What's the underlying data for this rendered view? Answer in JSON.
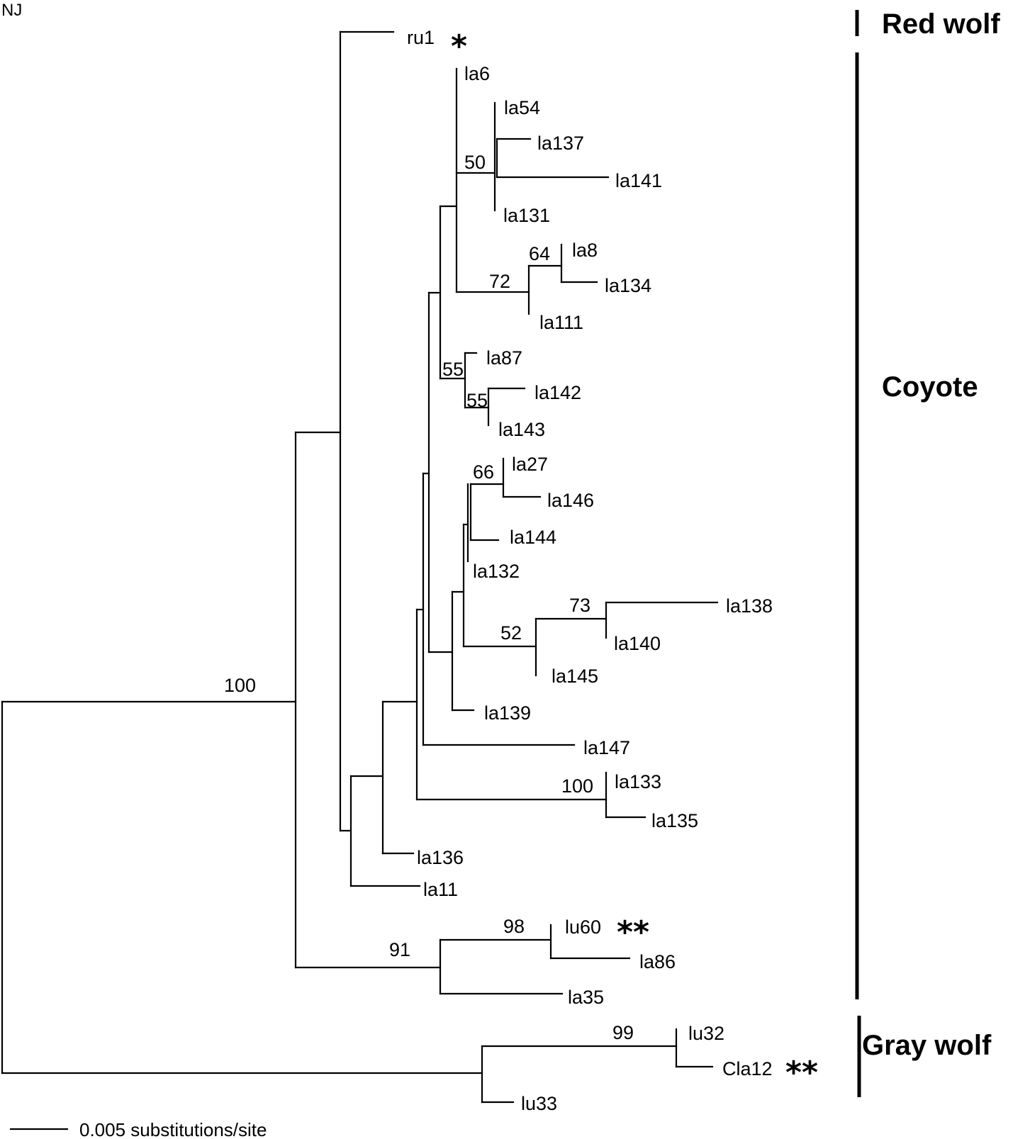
{
  "method_label": "NJ",
  "leaves": {
    "ru1": "ru1",
    "la6": "la6",
    "la54": "la54",
    "la137": "la137",
    "la141": "la141",
    "la131": "la131",
    "la8": "la8",
    "la134": "la134",
    "la111": "la111",
    "la87": "la87",
    "la142": "la142",
    "la143": "la143",
    "la27": "la27",
    "la146": "la146",
    "la144": "la144",
    "la132": "la132",
    "la138": "la138",
    "la140": "la140",
    "la145": "la145",
    "la139": "la139",
    "la147": "la147",
    "la133": "la133",
    "la135": "la135",
    "la136": "la136",
    "la11": "la11",
    "lu60": "lu60",
    "la86": "la86",
    "la35": "la35",
    "lu32": "lu32",
    "cla12": "Cla12",
    "lu33": "lu33"
  },
  "bootstrap": {
    "root_coyote": "100",
    "la_group_50": "50",
    "la8_la134": "64",
    "la8_group": "72",
    "la87_group": "55",
    "la142_la143": "55",
    "la27_la146": "66",
    "la138_la140": "73",
    "la138_group": "52",
    "la133_la135": "100",
    "lu60_la86": "98",
    "lu60_group": "91",
    "lu32_cla12": "99"
  },
  "markers": {
    "ru1_marker": "*",
    "lu60_marker": "**",
    "cla12_marker": "**"
  },
  "groups": {
    "red_wolf": "Red wolf",
    "coyote": "Coyote",
    "gray_wolf": "Gray wolf"
  },
  "scale_bar": {
    "label": "0.005 substitutions/site"
  }
}
